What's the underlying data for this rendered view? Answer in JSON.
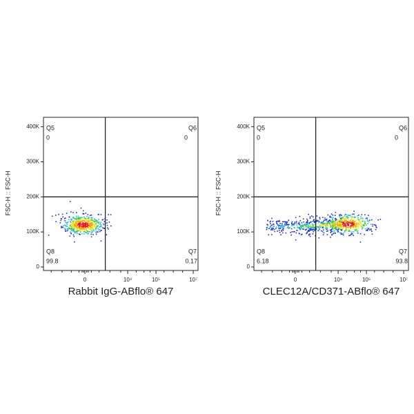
{
  "chart_data": [
    {
      "type": "flow-quadrant",
      "x_label": "Rabbit IgG-ABflo® 647",
      "y_label": "FSC-H :: FSC-H",
      "ylim": [
        -10000,
        427000
      ],
      "yticks": [
        0,
        {
          "value": 100000,
          "label": "100K"
        },
        {
          "value": 200000,
          "label": "200K"
        },
        {
          "value": 300000,
          "label": "300K"
        },
        {
          "value": 400000,
          "label": "400K"
        }
      ],
      "xticks": [
        0,
        {
          "value": 10000,
          "label": "10⁴"
        },
        {
          "value": 100000,
          "label": "10⁵"
        },
        {
          "value": 10000000,
          "label": "10⁷"
        }
      ],
      "quadrants": [
        {
          "name": "Q5",
          "value": 0
        },
        {
          "name": "Q6",
          "value": 0
        },
        {
          "name": "Q7",
          "value": 0.17
        },
        {
          "name": "Q8",
          "value": 99.8
        }
      ]
    },
    {
      "type": "flow-quadrant",
      "x_label": "CLEC12A/CD371-ABflo® 647",
      "y_label": "FSC-H :: FSC-H",
      "ylim": [
        -10000,
        427000
      ],
      "yticks": [
        0,
        {
          "value": 100000,
          "label": "100K"
        },
        {
          "value": 200000,
          "label": "200K"
        },
        {
          "value": 300000,
          "label": "300K"
        },
        {
          "value": 400000,
          "label": "400K"
        }
      ],
      "xticks": [
        0,
        {
          "value": 10000,
          "label": "10⁴"
        },
        {
          "value": 100000,
          "label": "10⁵"
        },
        {
          "value": 10000000,
          "label": "10⁷"
        }
      ],
      "quadrants": [
        {
          "name": "Q5",
          "value": 0
        },
        {
          "name": "Q6",
          "value": 0
        },
        {
          "name": "Q7",
          "value": 93.8
        },
        {
          "name": "Q8",
          "value": 6.18
        }
      ]
    }
  ]
}
